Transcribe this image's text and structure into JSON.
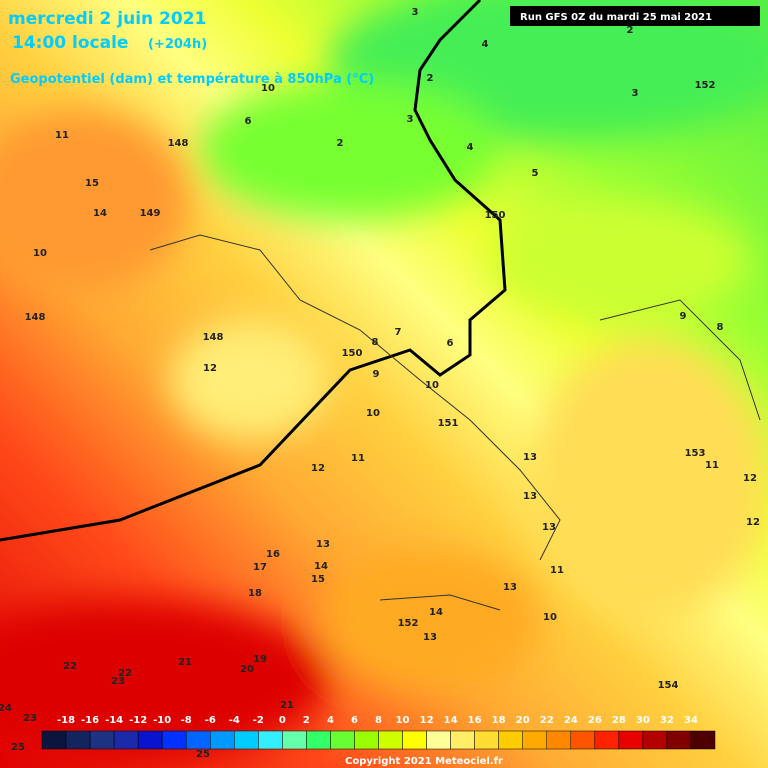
{
  "header": {
    "date": "mercredi 2 juin 2021",
    "time": "14:00 locale",
    "lead": "(+204h)",
    "subtitle": "Geopotentiel (dam) et température à 850hPa (°C)",
    "run": "Run GFS 0Z du mardi 25 mai 2021"
  },
  "scale": {
    "ticks": [
      -18,
      -16,
      -14,
      -12,
      -10,
      -8,
      -6,
      -4,
      -2,
      0,
      2,
      4,
      6,
      8,
      10,
      12,
      14,
      16,
      18,
      20,
      22,
      24,
      26,
      28,
      30,
      32,
      34
    ],
    "colors": [
      "#0b1640",
      "#14245e",
      "#1c3282",
      "#1a2aa8",
      "#0a14cc",
      "#0033ff",
      "#0066ff",
      "#0099ff",
      "#00ccff",
      "#33eeff",
      "#66ffaa",
      "#33ff66",
      "#66ff33",
      "#99ff00",
      "#ccff00",
      "#ffff00",
      "#ffff99",
      "#ffee66",
      "#ffdd33",
      "#ffcc00",
      "#ffaa00",
      "#ff8800",
      "#ff5500",
      "#ff2200",
      "#e60000",
      "#b30000",
      "#800000",
      "#4d0000"
    ]
  },
  "map_labels": [
    11,
    15,
    14,
    10,
    148,
    148,
    149,
    10,
    6,
    2,
    3,
    4,
    2,
    3,
    4,
    5,
    150,
    152,
    3,
    2,
    9,
    8,
    148,
    12,
    150,
    8,
    7,
    6,
    9,
    10,
    10,
    151,
    153,
    11,
    12,
    12,
    12,
    11,
    13,
    13,
    13,
    13,
    16,
    17,
    14,
    15,
    18,
    11,
    13,
    14,
    152,
    10,
    13,
    19,
    21,
    20,
    22,
    22,
    23,
    154,
    21,
    23,
    24,
    25,
    25
  ],
  "footer": {
    "copyright": "Copyright 2021 Meteociel.fr"
  }
}
